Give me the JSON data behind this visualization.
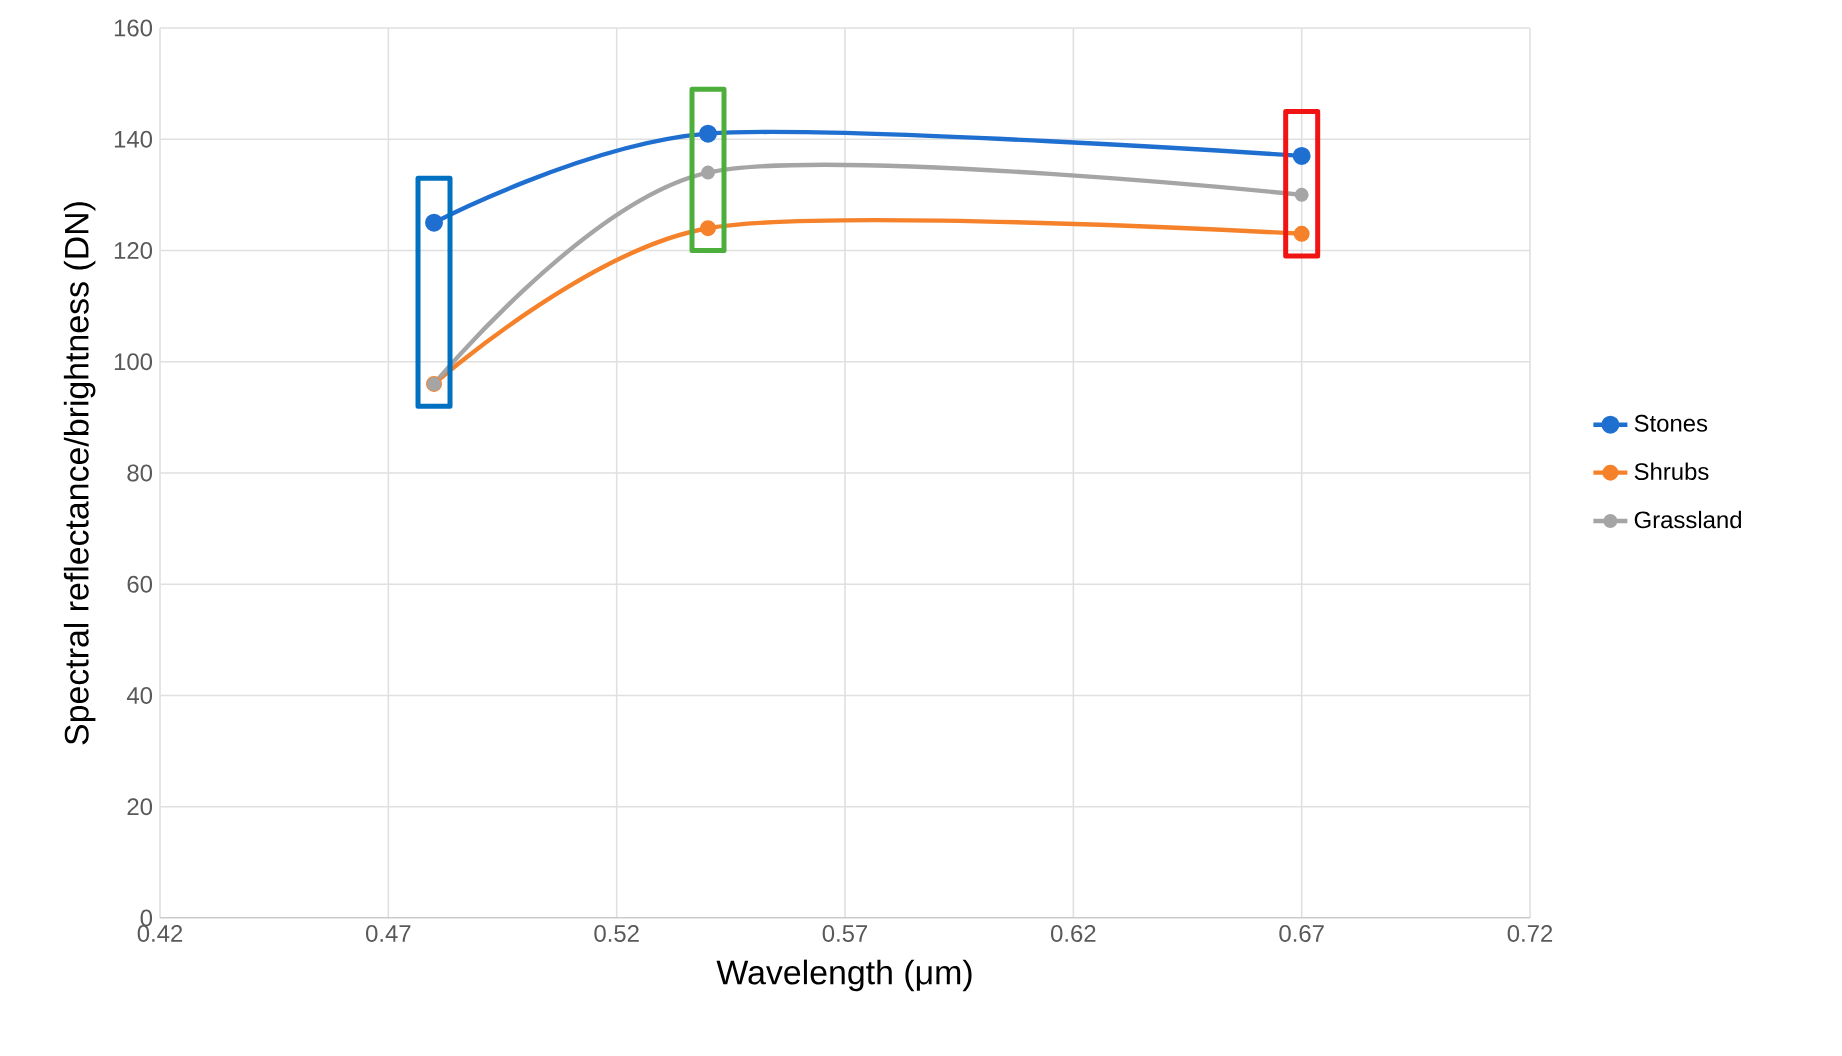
{
  "chart_data": {
    "type": "line",
    "xlabel": "Wavelength (μm)",
    "ylabel": "Spectral reflectance/brightness (DN)",
    "x": [
      0.48,
      0.54,
      0.67
    ],
    "series": [
      {
        "name": "Stones",
        "color": "#1f6fd0",
        "values": [
          125,
          141,
          137
        ]
      },
      {
        "name": "Shrubs",
        "color": "#f5822a",
        "values": [
          96,
          124,
          123
        ]
      },
      {
        "name": "Grassland",
        "color": "#a5a5a5",
        "values": [
          96,
          134,
          130
        ]
      }
    ],
    "xlim": [
      0.42,
      0.72
    ],
    "xticks": [
      0.42,
      0.47,
      0.52,
      0.57,
      0.62,
      0.67,
      0.72
    ],
    "ylim": [
      0,
      160
    ],
    "yticks": [
      0,
      20,
      40,
      60,
      80,
      100,
      120,
      140,
      160
    ],
    "grid": true,
    "legend": "right",
    "marker": "circle",
    "line_style": "solid"
  }
}
